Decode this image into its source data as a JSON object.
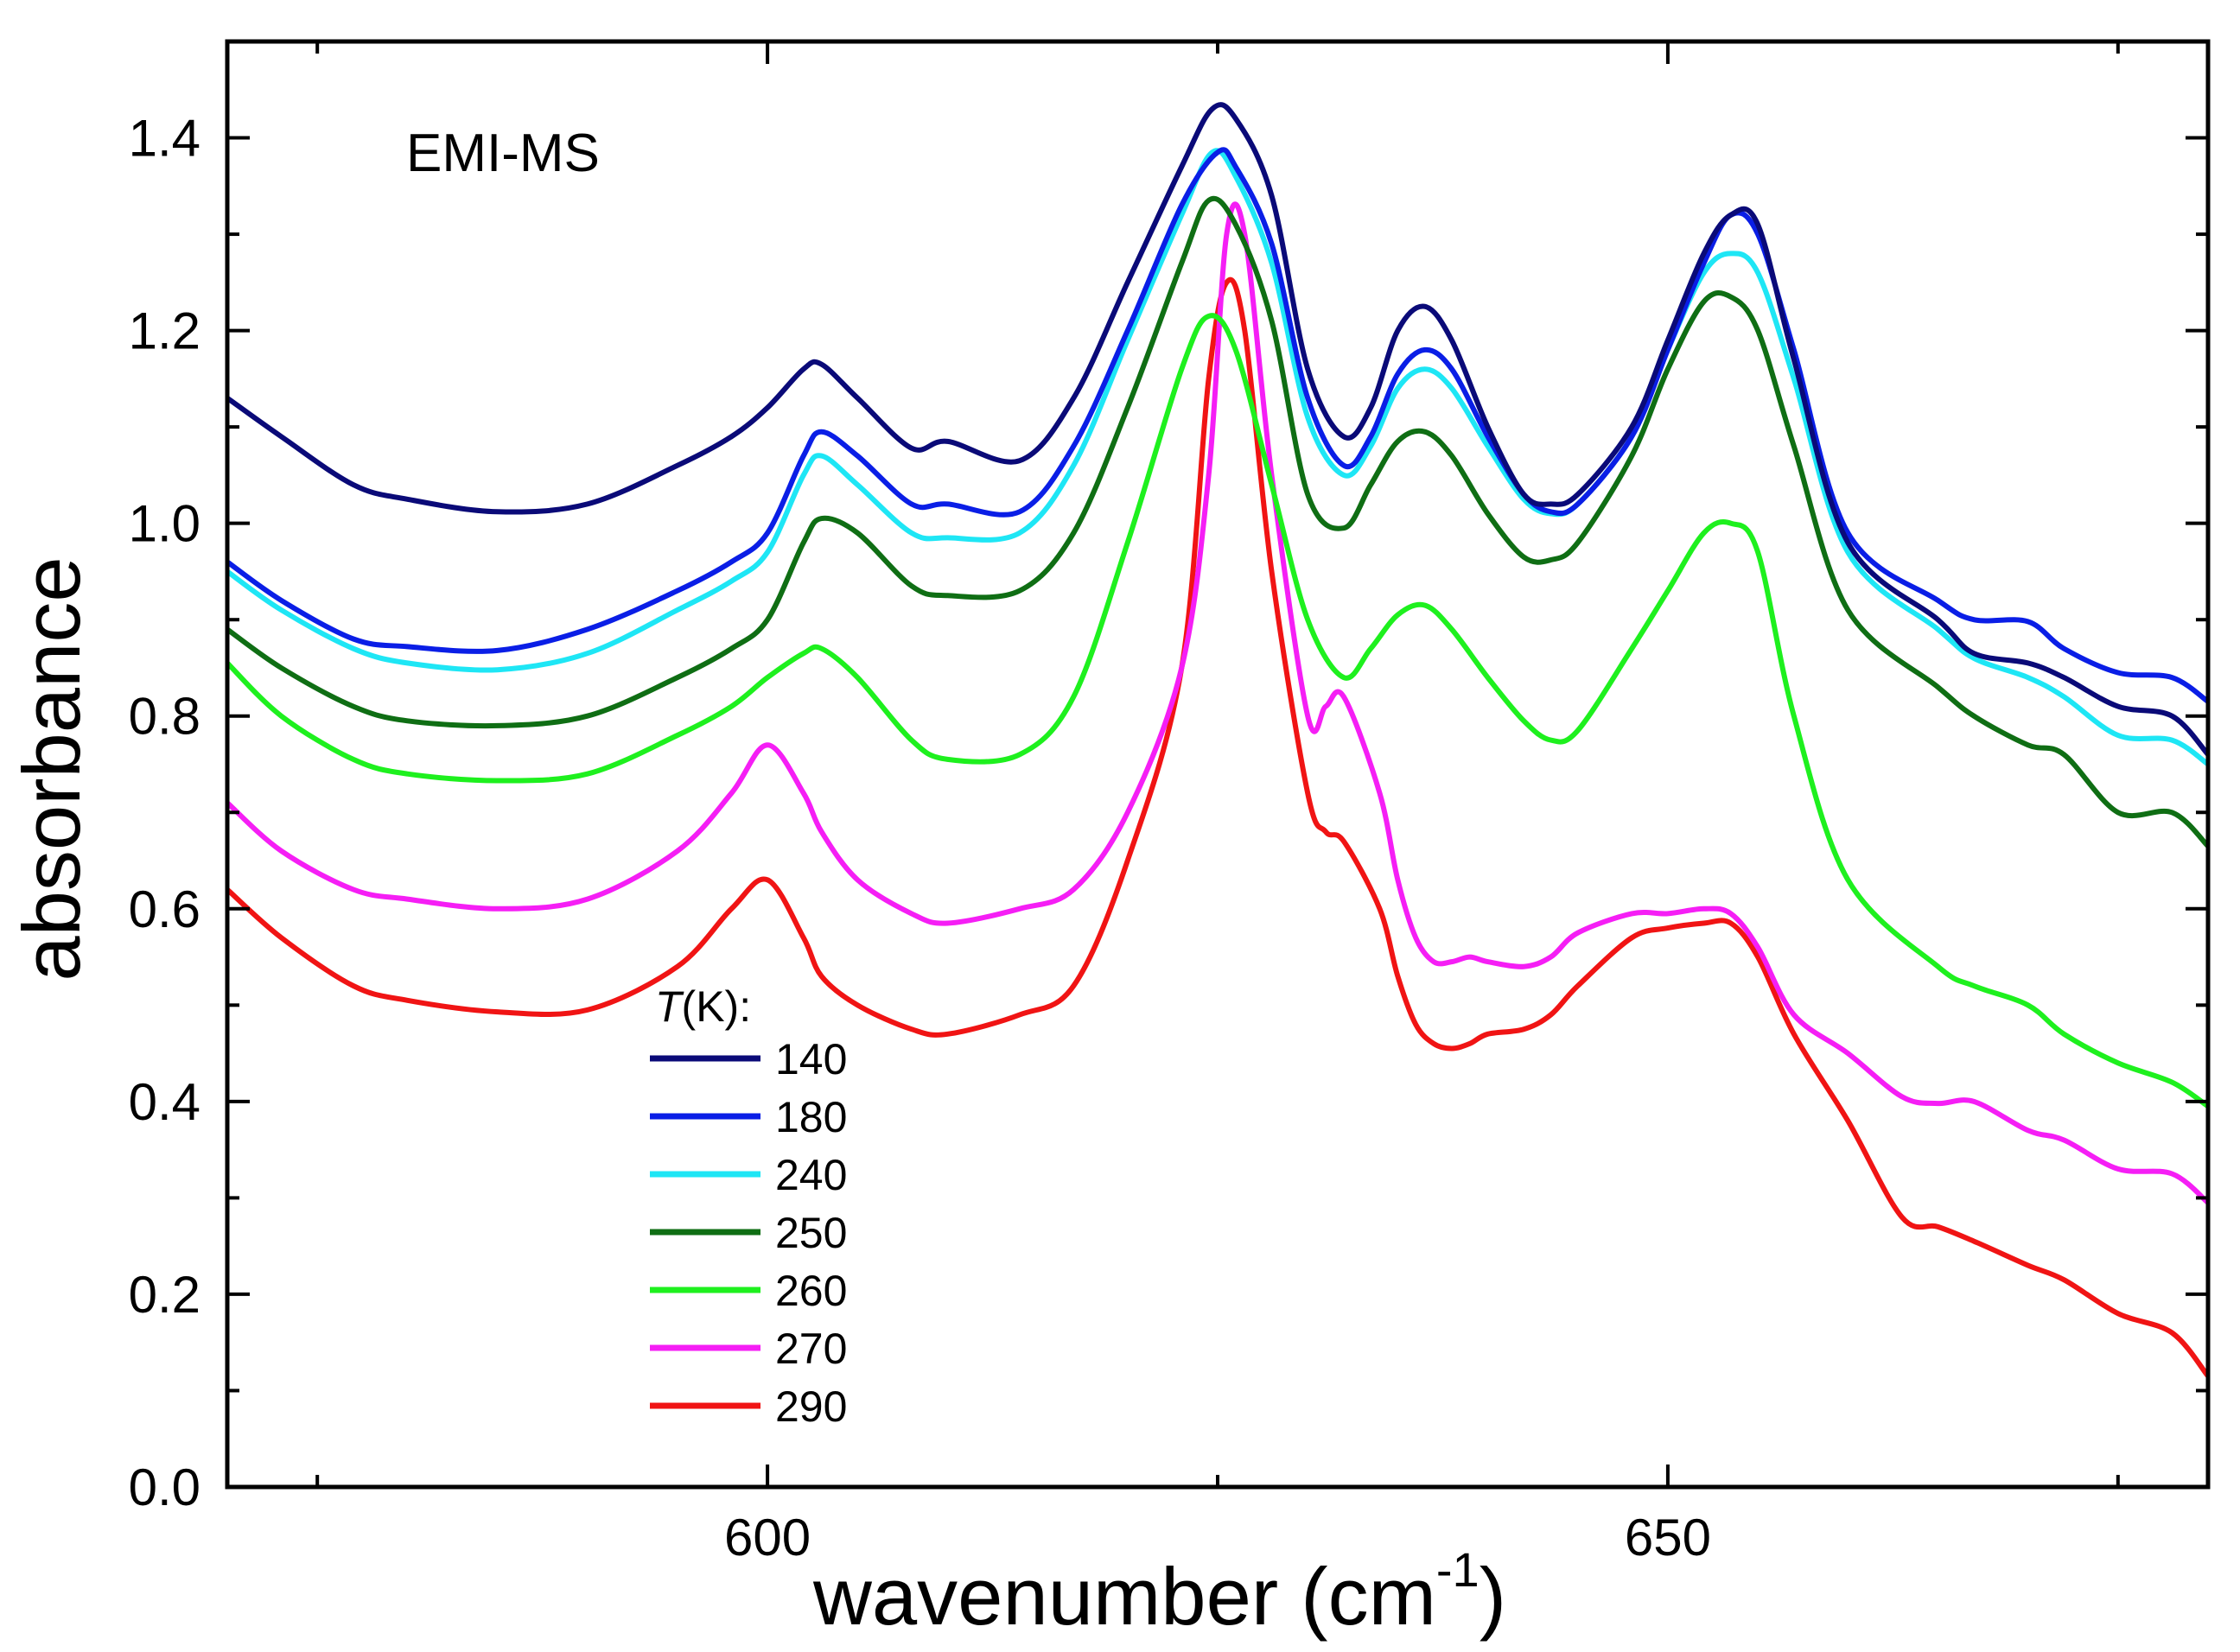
{
  "chart_data": {
    "type": "line",
    "annotation": "EMI-MS",
    "xlabel": "wavenumber (cm",
    "xlabel_sup": "-1",
    "xlabel_close": ")",
    "ylabel": "absorbance",
    "xlim": [
      570,
      680
    ],
    "ylim": [
      0.0,
      1.5
    ],
    "x_ticks": [
      {
        "value": 600,
        "label": "600"
      },
      {
        "value": 650,
        "label": "650"
      }
    ],
    "y_ticks": [
      {
        "value": 0.0,
        "label": "0.0"
      },
      {
        "value": 0.2,
        "label": "0.2"
      },
      {
        "value": 0.4,
        "label": "0.4"
      },
      {
        "value": 0.6,
        "label": "0.6"
      },
      {
        "value": 0.8,
        "label": "0.8"
      },
      {
        "value": 1.0,
        "label": "1.0"
      },
      {
        "value": 1.2,
        "label": "1.2"
      },
      {
        "value": 1.4,
        "label": "1.4"
      }
    ],
    "legend_title_italic": "T",
    "legend_title_rest": "(K):",
    "series": [
      {
        "name": "140",
        "color": "#0a0a78",
        "x": [
          570,
          573,
          577,
          580,
          585,
          590,
          595,
          598,
          600,
          602,
          603,
          605,
          608,
          610,
          614,
          617,
          620,
          623,
          624.7,
          626,
          628,
          630,
          632,
          633.5,
          635,
          636.5,
          638,
          640,
          642,
          643.5,
          645,
          648,
          650,
          652,
          653.5,
          655,
          657,
          660,
          665,
          667,
          670,
          672,
          675,
          678,
          680
        ],
        "y": [
          1.13,
          1.09,
          1.04,
          1.025,
          1.012,
          1.02,
          1.06,
          1.09,
          1.12,
          1.16,
          1.165,
          1.13,
          1.078,
          1.085,
          1.065,
          1.13,
          1.25,
          1.37,
          1.43,
          1.42,
          1.34,
          1.16,
          1.09,
          1.12,
          1.2,
          1.225,
          1.19,
          1.1,
          1.03,
          1.02,
          1.03,
          1.1,
          1.19,
          1.28,
          1.32,
          1.31,
          1.17,
          0.98,
          0.9,
          0.865,
          0.855,
          0.84,
          0.81,
          0.8,
          0.76
        ]
      },
      {
        "name": "180",
        "color": "#0a1ee6",
        "x": [
          570,
          573,
          577,
          580,
          585,
          590,
          595,
          598,
          600,
          602,
          603,
          605,
          608,
          610,
          614,
          617,
          620,
          623,
          625,
          626,
          628,
          630,
          632,
          633.5,
          635,
          636.5,
          638,
          640,
          642,
          643.5,
          645,
          648,
          650,
          652,
          653.5,
          655,
          657,
          660,
          665,
          667,
          670,
          672,
          675,
          678,
          680
        ],
        "y": [
          0.96,
          0.92,
          0.88,
          0.872,
          0.868,
          0.89,
          0.93,
          0.96,
          0.99,
          1.07,
          1.095,
          1.07,
          1.02,
          1.02,
          1.012,
          1.08,
          1.2,
          1.33,
          1.385,
          1.37,
          1.29,
          1.13,
          1.06,
          1.09,
          1.155,
          1.18,
          1.16,
          1.09,
          1.03,
          1.012,
          1.02,
          1.09,
          1.18,
          1.27,
          1.32,
          1.3,
          1.18,
          0.99,
          0.92,
          0.9,
          0.898,
          0.87,
          0.845,
          0.84,
          0.815
        ]
      },
      {
        "name": "240",
        "color": "#1ee6f5",
        "x": [
          570,
          573,
          577,
          580,
          585,
          590,
          595,
          598,
          600,
          602,
          603,
          605,
          608,
          610,
          614,
          617,
          620,
          623,
          624.7,
          626,
          628,
          630,
          632,
          633.5,
          635,
          636.5,
          638,
          640,
          642,
          643.5,
          645,
          648,
          650,
          652,
          653.5,
          655,
          657,
          660,
          665,
          667,
          670,
          672,
          675,
          678,
          680
        ],
        "y": [
          0.95,
          0.91,
          0.87,
          0.855,
          0.848,
          0.865,
          0.91,
          0.94,
          0.97,
          1.05,
          1.07,
          1.04,
          0.99,
          0.985,
          0.99,
          1.06,
          1.19,
          1.32,
          1.385,
          1.36,
          1.27,
          1.11,
          1.05,
          1.08,
          1.14,
          1.16,
          1.14,
          1.08,
          1.025,
          1.01,
          1.02,
          1.09,
          1.18,
          1.26,
          1.28,
          1.26,
          1.15,
          0.97,
          0.89,
          0.86,
          0.84,
          0.82,
          0.78,
          0.775,
          0.75
        ]
      },
      {
        "name": "250",
        "color": "#0f6e14",
        "x": [
          570,
          573,
          577,
          580,
          585,
          590,
          595,
          598,
          600,
          602,
          603,
          605,
          608,
          610,
          614,
          617,
          620,
          623,
          624.5,
          626,
          628,
          630,
          632,
          633.5,
          635,
          636.5,
          638,
          640,
          642,
          643.5,
          645,
          648,
          650,
          652,
          653.5,
          655,
          657,
          660,
          665,
          667,
          670,
          672,
          675,
          678,
          680
        ],
        "y": [
          0.89,
          0.85,
          0.81,
          0.795,
          0.79,
          0.8,
          0.84,
          0.87,
          0.9,
          0.98,
          1.005,
          0.99,
          0.935,
          0.925,
          0.93,
          0.99,
          1.12,
          1.27,
          1.335,
          1.31,
          1.21,
          1.03,
          0.995,
          1.04,
          1.085,
          1.095,
          1.07,
          1.01,
          0.965,
          0.962,
          0.98,
          1.07,
          1.16,
          1.23,
          1.235,
          1.2,
          1.08,
          0.91,
          0.83,
          0.8,
          0.77,
          0.76,
          0.7,
          0.7,
          0.665
        ]
      },
      {
        "name": "260",
        "color": "#1ef01e",
        "x": [
          570,
          573,
          577,
          580,
          585,
          590,
          595,
          598,
          600,
          602,
          603,
          605,
          608,
          610,
          614,
          617,
          620,
          623,
          624.5,
          626,
          628,
          630,
          632,
          633.5,
          635,
          636.5,
          638,
          640,
          642,
          643.5,
          645,
          648,
          650,
          652,
          653.5,
          655,
          657,
          660,
          665,
          667,
          670,
          672,
          675,
          678,
          680
        ],
        "y": [
          0.855,
          0.8,
          0.755,
          0.74,
          0.733,
          0.74,
          0.78,
          0.81,
          0.84,
          0.865,
          0.87,
          0.84,
          0.775,
          0.755,
          0.76,
          0.82,
          0.98,
          1.16,
          1.215,
          1.18,
          1.04,
          0.9,
          0.84,
          0.87,
          0.905,
          0.915,
          0.89,
          0.84,
          0.795,
          0.775,
          0.785,
          0.87,
          0.93,
          0.99,
          1.0,
          0.97,
          0.8,
          0.63,
          0.54,
          0.52,
          0.5,
          0.47,
          0.44,
          0.42,
          0.395
        ]
      },
      {
        "name": "270",
        "color": "#f51ef5",
        "x": [
          570,
          573,
          577,
          580,
          585,
          590,
          595,
          598,
          600,
          602,
          603,
          605,
          608,
          610,
          614,
          617,
          620,
          623,
          624.5,
          625.5,
          626.5,
          628,
          630,
          631,
          632,
          634,
          635,
          636,
          637,
          638,
          639,
          640,
          642,
          643.5,
          645,
          648,
          650,
          652,
          653.5,
          655,
          657,
          660,
          663,
          665,
          667,
          670,
          672,
          675,
          678,
          680
        ],
        "y": [
          0.71,
          0.66,
          0.62,
          0.61,
          0.6,
          0.61,
          0.66,
          0.72,
          0.77,
          0.72,
          0.68,
          0.63,
          0.595,
          0.585,
          0.6,
          0.62,
          0.7,
          0.85,
          1.05,
          1.3,
          1.3,
          1.05,
          0.8,
          0.81,
          0.82,
          0.72,
          0.63,
          0.57,
          0.545,
          0.545,
          0.55,
          0.545,
          0.54,
          0.55,
          0.575,
          0.595,
          0.595,
          0.6,
          0.595,
          0.56,
          0.49,
          0.45,
          0.405,
          0.398,
          0.4,
          0.37,
          0.36,
          0.33,
          0.325,
          0.295
        ]
      },
      {
        "name": "290",
        "color": "#f01414",
        "x": [
          570,
          573,
          577,
          580,
          585,
          590,
          595,
          598,
          600,
          602,
          603,
          605,
          608,
          610,
          614,
          617,
          620,
          623,
          624.5,
          625.5,
          626.5,
          628,
          630,
          631,
          632,
          634,
          635,
          636,
          637,
          638,
          639,
          640,
          642,
          643.5,
          645,
          648,
          650,
          652,
          653.5,
          655,
          657,
          660,
          663,
          665,
          667,
          670,
          672,
          675,
          678,
          680
        ],
        "y": [
          0.62,
          0.57,
          0.52,
          0.505,
          0.493,
          0.495,
          0.54,
          0.6,
          0.63,
          0.57,
          0.53,
          0.5,
          0.475,
          0.47,
          0.49,
          0.52,
          0.65,
          0.85,
          1.15,
          1.25,
          1.2,
          0.95,
          0.72,
          0.68,
          0.67,
          0.6,
          0.53,
          0.48,
          0.46,
          0.455,
          0.46,
          0.47,
          0.475,
          0.49,
          0.52,
          0.57,
          0.58,
          0.585,
          0.585,
          0.55,
          0.47,
          0.38,
          0.28,
          0.27,
          0.255,
          0.23,
          0.215,
          0.18,
          0.16,
          0.115
        ]
      }
    ]
  }
}
